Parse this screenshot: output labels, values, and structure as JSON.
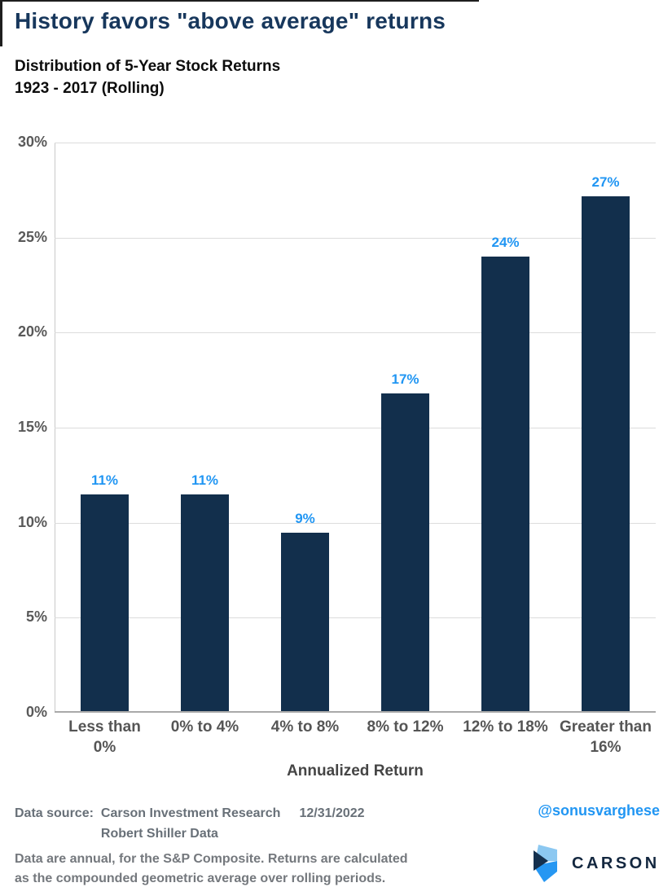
{
  "page": {
    "title": "History favors \"above average\" returns",
    "subtitle_line1": "Distribution of 5-Year Stock Returns",
    "subtitle_line2": "1923 - 2017 (Rolling)"
  },
  "chart_data": {
    "type": "bar",
    "title": "Distribution of 5-Year Stock Returns 1923 - 2017 (Rolling)",
    "categories": [
      "Less than 0%",
      "0% to 4%",
      "4% to 8%",
      "8% to 12%",
      "12% to 18%",
      "Greater than 16%"
    ],
    "category_display": [
      "Less than\n0%",
      "0% to 4%",
      "4% to 8%",
      "8% to 12%",
      "12% to 18%",
      "Greater than\n16%"
    ],
    "values": [
      11.4,
      11.4,
      9.4,
      16.7,
      23.9,
      27.1
    ],
    "labels": [
      "11%",
      "11%",
      "9%",
      "17%",
      "24%",
      "27%"
    ],
    "xlabel": "Annualized Return",
    "ylabel": "",
    "ylim": [
      0,
      30
    ],
    "yticks": [
      "30%",
      "25%",
      "20%",
      "15%",
      "10%",
      "5%",
      "0%"
    ],
    "grid": true,
    "legend": "none"
  },
  "footer": {
    "source_label": "Data source:",
    "source_line1": "Carson Investment Research",
    "source_line2": "Robert Shiller Data",
    "date": "12/31/2022",
    "handle": "@sonusvarghese",
    "note_line1": "Data are annual, for the S&P Composite. Returns are calculated",
    "note_line2": "as the compounded geometric average over rolling periods.",
    "brand": "CARSON"
  },
  "colors": {
    "title_navy": "#17375C",
    "bar_navy": "#122F4C",
    "value_label_blue": "#2196F3",
    "handle_blue": "#2196F3",
    "brand_navy": "#13273F",
    "logo_light_blue": "#8CC8F1",
    "logo_bright_blue": "#2697F2",
    "logo_dark_navy": "#14304E",
    "grid_gray": "#DCDCDC",
    "axis_text_gray": "#595959"
  }
}
